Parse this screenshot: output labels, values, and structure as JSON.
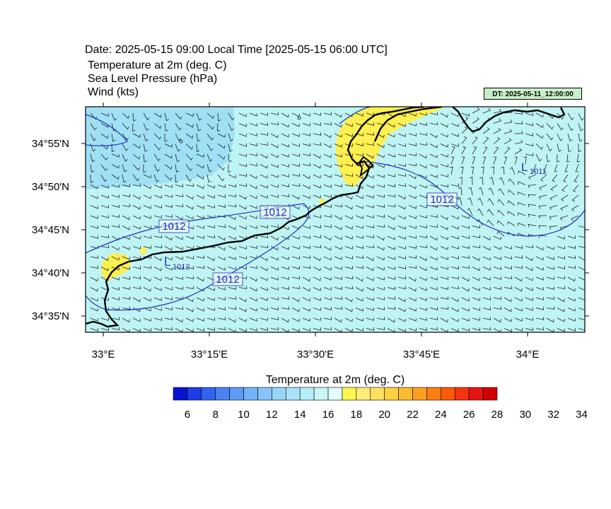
{
  "header": {
    "date_line": "Date: 2025-05-15  09:00 Local Time [2025-05-15  06:00 UTC]",
    "variables": [
      "Temperature at 2m   (deg. C)",
      "Sea Level Pressure   (hPa)",
      "Wind   (kts)"
    ],
    "dt_badge": "DT: 2025-05-11_12:00:00"
  },
  "map": {
    "lon_ticks": [
      "33°E",
      "33°15'E",
      "33°30'E",
      "33°45'E",
      "34°E"
    ],
    "lat_ticks": [
      "34°55'N",
      "34°50'N",
      "34°45'N",
      "34°40'N",
      "34°35'N"
    ],
    "isobar_labels": [
      "1012",
      "1012",
      "1012",
      "1012"
    ],
    "lows": [
      {
        "letter": "L",
        "value": "1012"
      },
      {
        "letter": "L",
        "value": "1011"
      }
    ],
    "colors": {
      "sea_temp": "#bff4f4",
      "cool_patch": "#9fe0f4",
      "warm_patch": "#fdf050",
      "isobar": "#2030c0",
      "coast": "#000000"
    }
  },
  "colorbar": {
    "title": "Temperature at 2m  (deg. C)",
    "labels": [
      "6",
      "8",
      "10",
      "12",
      "14",
      "16",
      "18",
      "20",
      "22",
      "24",
      "26",
      "28",
      "30",
      "32",
      "34"
    ],
    "colors": [
      "#0a14d0",
      "#1e3ce6",
      "#3264ee",
      "#4a82f4",
      "#5e9af6",
      "#72b2f8",
      "#86c4fa",
      "#98d4f8",
      "#a8e2f6",
      "#b4eef6",
      "#c8f6f6",
      "#e4fcfc",
      "#fdf550",
      "#fded78",
      "#fde060",
      "#fdd040",
      "#fdbc30",
      "#fda020",
      "#fd7e10",
      "#fb5a08",
      "#f43410",
      "#e81414",
      "#d00000"
    ]
  }
}
